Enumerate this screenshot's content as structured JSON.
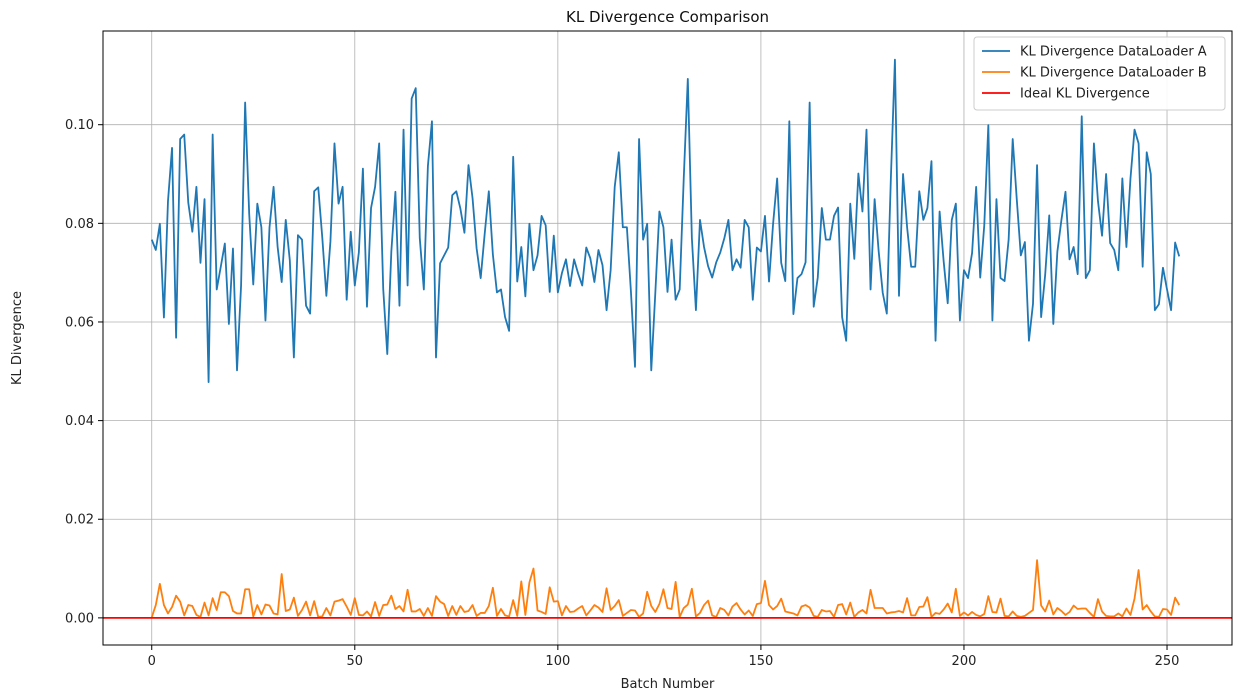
{
  "chart_data": {
    "type": "line",
    "title": "KL Divergence Comparison",
    "xlabel": "Batch Number",
    "ylabel": "KL Divergence",
    "xlim": [
      -12,
      266
    ],
    "ylim": [
      -0.0055,
      0.119
    ],
    "xticks": [
      0,
      50,
      100,
      150,
      200,
      250
    ],
    "yticks": [
      0.0,
      0.02,
      0.04,
      0.06,
      0.08,
      0.1
    ],
    "ytick_labels": [
      "0.00",
      "0.02",
      "0.04",
      "0.06",
      "0.08",
      "0.10"
    ],
    "grid": true,
    "legend_position": "top-right",
    "series": [
      {
        "name": "KL Divergence DataLoader A",
        "color": "#1f77b4",
        "x_start": 0,
        "x_step": 1,
        "values": [
          0.0767,
          0.0746,
          0.0799,
          0.0609,
          0.0845,
          0.0953,
          0.0568,
          0.0971,
          0.098,
          0.0842,
          0.0783,
          0.0874,
          0.072,
          0.0849,
          0.0478,
          0.098,
          0.0666,
          0.0712,
          0.0759,
          0.0596,
          0.0749,
          0.0502,
          0.0674,
          0.1045,
          0.0819,
          0.0676,
          0.084,
          0.0792,
          0.0603,
          0.0792,
          0.0874,
          0.0752,
          0.0681,
          0.0807,
          0.0725,
          0.0528,
          0.0776,
          0.0767,
          0.0633,
          0.0617,
          0.0865,
          0.0873,
          0.0771,
          0.0653,
          0.0763,
          0.0962,
          0.084,
          0.0874,
          0.0645,
          0.0783,
          0.0674,
          0.0741,
          0.0911,
          0.0631,
          0.0831,
          0.0874,
          0.0962,
          0.0667,
          0.0535,
          0.0743,
          0.0864,
          0.0633,
          0.099,
          0.0674,
          0.1053,
          0.1074,
          0.077,
          0.0666,
          0.0916,
          0.1007,
          0.0528,
          0.0719,
          0.0735,
          0.0751,
          0.0857,
          0.0865,
          0.083,
          0.0781,
          0.0918,
          0.0851,
          0.0749,
          0.0689,
          0.078,
          0.0865,
          0.0737,
          0.066,
          0.0666,
          0.061,
          0.0582,
          0.0935,
          0.0682,
          0.0752,
          0.0652,
          0.0799,
          0.0705,
          0.0735,
          0.0815,
          0.0796,
          0.0661,
          0.0775,
          0.066,
          0.0699,
          0.0727,
          0.0673,
          0.0727,
          0.0698,
          0.0674,
          0.0751,
          0.0729,
          0.0681,
          0.0746,
          0.0715,
          0.0624,
          0.0705,
          0.0874,
          0.0944,
          0.0792,
          0.0792,
          0.0661,
          0.0509,
          0.0971,
          0.0767,
          0.0799,
          0.0502,
          0.0659,
          0.0824,
          0.0792,
          0.0661,
          0.0767,
          0.0645,
          0.0666,
          0.0891,
          0.1093,
          0.077,
          0.0624,
          0.0807,
          0.0752,
          0.0713,
          0.069,
          0.0721,
          0.0741,
          0.077,
          0.0807,
          0.0705,
          0.0727,
          0.071,
          0.0807,
          0.0792,
          0.0645,
          0.0751,
          0.0743,
          0.0815,
          0.0682,
          0.0799,
          0.0891,
          0.072,
          0.0683,
          0.1007,
          0.0616,
          0.0689,
          0.0697,
          0.0721,
          0.1045,
          0.0631,
          0.069,
          0.0831,
          0.0767,
          0.0767,
          0.0815,
          0.0832,
          0.061,
          0.0562,
          0.084,
          0.0728,
          0.0901,
          0.0824,
          0.099,
          0.0666,
          0.0849,
          0.0743,
          0.0659,
          0.0617,
          0.0891,
          0.1132,
          0.0653,
          0.09,
          0.0792,
          0.0712,
          0.0712,
          0.0865,
          0.0807,
          0.0831,
          0.0926,
          0.0562,
          0.0824,
          0.0723,
          0.0638,
          0.0807,
          0.084,
          0.0603,
          0.0705,
          0.0689,
          0.074,
          0.0874,
          0.069,
          0.0796,
          0.0999,
          0.0603,
          0.0849,
          0.0689,
          0.0683,
          0.0767,
          0.0971,
          0.0849,
          0.0735,
          0.0762,
          0.0562,
          0.0637,
          0.0918,
          0.061,
          0.0696,
          0.0816,
          0.0596,
          0.0743,
          0.0807,
          0.0864,
          0.0727,
          0.0752,
          0.0697,
          0.1017,
          0.0689,
          0.0705,
          0.0962,
          0.0845,
          0.0775,
          0.09,
          0.076,
          0.0746,
          0.0705,
          0.0891,
          0.0752,
          0.0891,
          0.099,
          0.0962,
          0.0712,
          0.0944,
          0.09,
          0.0624,
          0.0636,
          0.071,
          0.0666,
          0.0624,
          0.0761,
          0.0733
        ]
      },
      {
        "name": "KL Divergence DataLoader B",
        "color": "#ff7f0e",
        "x_start": 0,
        "x_step": 1,
        "values": [
          0.0001,
          0.0026,
          0.0069,
          0.0026,
          0.0009,
          0.0022,
          0.0045,
          0.0033,
          0.0005,
          0.0026,
          0.0024,
          0.0006,
          0.0002,
          0.0031,
          0.0005,
          0.004,
          0.0016,
          0.0052,
          0.0052,
          0.0044,
          0.0014,
          0.0009,
          0.0009,
          0.0058,
          0.0058,
          0.0003,
          0.0026,
          0.0007,
          0.0027,
          0.0025,
          0.0009,
          0.0007,
          0.0089,
          0.0014,
          0.0017,
          0.0041,
          0.0004,
          0.0016,
          0.0033,
          0.0005,
          0.0034,
          0.0002,
          0.0003,
          0.002,
          0.0005,
          0.0033,
          0.0035,
          0.0038,
          0.0023,
          0.0006,
          0.004,
          0.0006,
          0.0005,
          0.0013,
          0.0003,
          0.0032,
          0.0004,
          0.0026,
          0.0027,
          0.0045,
          0.0018,
          0.0024,
          0.0013,
          0.0057,
          0.0013,
          0.0013,
          0.0018,
          0.0004,
          0.002,
          0.0004,
          0.0044,
          0.0033,
          0.0028,
          0.0004,
          0.0024,
          0.0006,
          0.0024,
          0.0012,
          0.0014,
          0.0026,
          0.0004,
          0.001,
          0.001,
          0.0024,
          0.0061,
          0.0004,
          0.0018,
          0.0005,
          0.0003,
          0.0036,
          0.0004,
          0.0074,
          0.0006,
          0.0072,
          0.01,
          0.0015,
          0.0012,
          0.0008,
          0.0062,
          0.0033,
          0.0034,
          0.0005,
          0.0024,
          0.0012,
          0.0013,
          0.0019,
          0.0024,
          0.0005,
          0.0015,
          0.0026,
          0.0021,
          0.0012,
          0.006,
          0.0016,
          0.0024,
          0.0036,
          0.0004,
          0.001,
          0.0016,
          0.0015,
          0.0002,
          0.0009,
          0.0053,
          0.0024,
          0.0012,
          0.0028,
          0.0058,
          0.002,
          0.0018,
          0.0073,
          0.0002,
          0.002,
          0.0027,
          0.0059,
          0.0003,
          0.001,
          0.0026,
          0.0035,
          0.0005,
          0.0002,
          0.002,
          0.0016,
          0.0005,
          0.0023,
          0.003,
          0.0017,
          0.0007,
          0.0015,
          0.0004,
          0.0028,
          0.003,
          0.0075,
          0.0026,
          0.0017,
          0.0024,
          0.0039,
          0.0013,
          0.0011,
          0.0009,
          0.0005,
          0.0023,
          0.0026,
          0.0021,
          0.0004,
          0.0002,
          0.0016,
          0.0013,
          0.0014,
          0.0002,
          0.0026,
          0.0028,
          0.0007,
          0.0031,
          0.0002,
          0.0011,
          0.0016,
          0.0009,
          0.0057,
          0.002,
          0.002,
          0.002,
          0.0009,
          0.0011,
          0.0012,
          0.0014,
          0.0011,
          0.004,
          0.0005,
          0.0005,
          0.0022,
          0.0023,
          0.0042,
          0.0002,
          0.001,
          0.0008,
          0.0017,
          0.0029,
          0.0011,
          0.0059,
          0.0004,
          0.0011,
          0.0005,
          0.0012,
          0.0006,
          0.0003,
          0.0008,
          0.0044,
          0.0012,
          0.0011,
          0.0039,
          0.0004,
          0.0003,
          0.0013,
          0.0004,
          0.0002,
          0.0004,
          0.001,
          0.0016,
          0.0117,
          0.0025,
          0.0013,
          0.0035,
          0.0007,
          0.002,
          0.0014,
          0.0006,
          0.0012,
          0.0025,
          0.0018,
          0.0019,
          0.0019,
          0.001,
          0.0002,
          0.0038,
          0.0013,
          0.0004,
          0.0003,
          0.0003,
          0.0009,
          0.0003,
          0.0019,
          0.0006,
          0.0039,
          0.0097,
          0.0017,
          0.0026,
          0.0013,
          0.0003,
          0.0002,
          0.0018,
          0.0017,
          0.0006,
          0.0041,
          0.0026
        ]
      },
      {
        "name": "Ideal KL Divergence",
        "color": "#ff0000",
        "hline": 0.0
      }
    ]
  }
}
